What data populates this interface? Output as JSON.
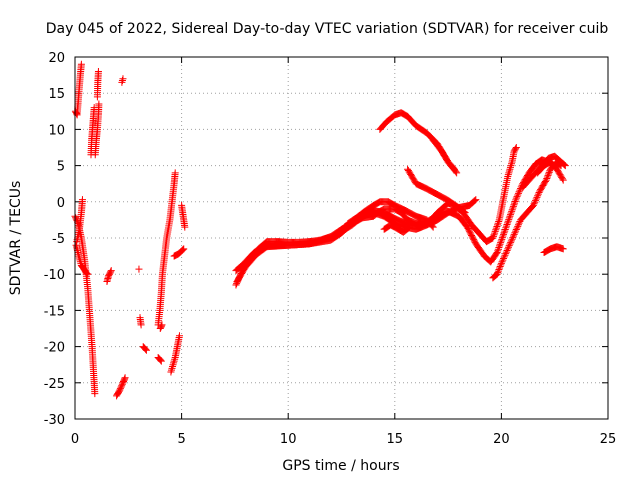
{
  "chart_data": {
    "type": "scatter",
    "title": "Day 045 of 2022, Sidereal Day-to-day VTEC variation (SDTVAR) for receiver cuib",
    "xlabel": "GPS time / hours",
    "ylabel": "SDTVAR / TECUs",
    "xlim": [
      0,
      25
    ],
    "ylim": [
      -30,
      20
    ],
    "xticks": [
      "0",
      "5",
      "10",
      "15",
      "20",
      "25"
    ],
    "yticks": [
      "-30",
      "-25",
      "-20",
      "-15",
      "-10",
      "-5",
      "0",
      "5",
      "10",
      "15",
      "20"
    ],
    "grid": true,
    "marker": "+",
    "color": "#ff0000",
    "series": [
      {
        "name": "SDTVAR",
        "segments": [
          [
            [
              0.0,
              -2.0
            ],
            [
              0.15,
              -3.0
            ],
            [
              0.3,
              -5.0
            ],
            [
              0.45,
              -8.0
            ],
            [
              0.6,
              -12.0
            ],
            [
              0.7,
              -16.0
            ],
            [
              0.8,
              -20.0
            ],
            [
              0.88,
              -24.0
            ],
            [
              0.93,
              -26.5
            ]
          ],
          [
            [
              0.08,
              -5.5
            ],
            [
              0.2,
              -4.0
            ],
            [
              0.3,
              -1.5
            ],
            [
              0.35,
              0.3
            ]
          ],
          [
            [
              0.05,
              -6.0
            ],
            [
              0.18,
              -7.5
            ],
            [
              0.3,
              -8.8
            ],
            [
              0.4,
              -9.2
            ],
            [
              0.52,
              -9.8
            ],
            [
              0.6,
              -10.0
            ]
          ],
          [
            [
              0.02,
              12.5
            ],
            [
              0.1,
              12.0
            ],
            [
              0.18,
              15.0
            ],
            [
              0.25,
              17.5
            ],
            [
              0.3,
              19.0
            ]
          ],
          [
            [
              0.75,
              6.5
            ],
            [
              0.78,
              8.5
            ],
            [
              0.82,
              10.0
            ],
            [
              0.86,
              11.5
            ],
            [
              0.9,
              13.0
            ]
          ],
          [
            [
              0.95,
              6.5
            ],
            [
              1.0,
              8.5
            ],
            [
              1.05,
              10.0
            ],
            [
              1.1,
              12.0
            ],
            [
              1.12,
              13.5
            ]
          ],
          [
            [
              1.05,
              14.5
            ],
            [
              1.07,
              16.5
            ],
            [
              1.1,
              18.0
            ]
          ],
          [
            [
              2.2,
              16.5
            ],
            [
              2.25,
              17.0
            ]
          ],
          [
            [
              1.5,
              -11.0
            ],
            [
              1.58,
              -10.2
            ],
            [
              1.7,
              -9.5
            ]
          ],
          [
            [
              3.0,
              -9.3
            ]
          ],
          [
            [
              3.05,
              -16.0
            ],
            [
              3.1,
              -17.0
            ]
          ],
          [
            [
              3.2,
              -20.0
            ],
            [
              3.35,
              -20.5
            ]
          ],
          [
            [
              1.95,
              -26.8
            ],
            [
              2.1,
              -26.0
            ],
            [
              2.25,
              -25.0
            ],
            [
              2.35,
              -24.3
            ]
          ],
          [
            [
              3.9,
              -17.0
            ],
            [
              3.98,
              -15.0
            ],
            [
              4.05,
              -12.5
            ],
            [
              4.1,
              -10.0
            ],
            [
              4.2,
              -7.5
            ],
            [
              4.3,
              -5.0
            ],
            [
              4.45,
              -2.5
            ],
            [
              4.55,
              0.0
            ],
            [
              4.65,
              2.5
            ],
            [
              4.7,
              4.0
            ]
          ],
          [
            [
              3.9,
              -21.5
            ],
            [
              4.05,
              -22.0
            ]
          ],
          [
            [
              4.0,
              -17.5
            ],
            [
              4.08,
              -17.0
            ]
          ],
          [
            [
              4.5,
              -23.5
            ],
            [
              4.6,
              -22.5
            ],
            [
              4.7,
              -21.5
            ],
            [
              4.8,
              -20.0
            ],
            [
              4.9,
              -18.5
            ]
          ],
          [
            [
              4.65,
              -7.5
            ],
            [
              4.85,
              -7.2
            ],
            [
              5.0,
              -6.8
            ],
            [
              5.1,
              -6.5
            ]
          ],
          [
            [
              5.0,
              -0.5
            ],
            [
              5.05,
              -1.5
            ],
            [
              5.1,
              -2.5
            ],
            [
              5.15,
              -3.5
            ]
          ],
          [
            [
              7.55,
              -11.5
            ],
            [
              7.7,
              -10.5
            ],
            [
              7.85,
              -9.5
            ],
            [
              8.0,
              -8.5
            ],
            [
              8.3,
              -7.5
            ],
            [
              8.6,
              -6.5
            ],
            [
              9.0,
              -5.5
            ],
            [
              9.5,
              -5.5
            ],
            [
              10.0,
              -5.6
            ],
            [
              10.5,
              -5.6
            ],
            [
              11.0,
              -5.5
            ],
            [
              11.5,
              -5.3
            ],
            [
              12.0,
              -4.8
            ],
            [
              12.5,
              -3.8
            ],
            [
              13.0,
              -2.8
            ],
            [
              13.5,
              -1.8
            ],
            [
              14.0,
              -1.2
            ],
            [
              14.5,
              -1.5
            ],
            [
              15.0,
              -2.3
            ],
            [
              15.5,
              -3.0
            ],
            [
              16.0,
              -3.3
            ],
            [
              16.5,
              -2.8
            ],
            [
              17.0,
              -1.8
            ],
            [
              17.5,
              -1.3
            ],
            [
              18.0,
              -2.0
            ],
            [
              18.4,
              -3.5
            ],
            [
              18.8,
              -5.8
            ],
            [
              19.2,
              -7.5
            ],
            [
              19.5,
              -8.3
            ],
            [
              19.8,
              -7.0
            ],
            [
              20.1,
              -4.5
            ],
            [
              20.4,
              -2.0
            ],
            [
              20.7,
              0.5
            ],
            [
              21.0,
              2.5
            ],
            [
              21.3,
              4.0
            ],
            [
              21.6,
              5.2
            ],
            [
              21.9,
              5.8
            ],
            [
              22.2,
              5.5
            ],
            [
              22.5,
              5.0
            ],
            [
              22.8,
              5.3
            ]
          ],
          [
            [
              7.55,
              -9.5
            ],
            [
              7.9,
              -8.6
            ],
            [
              8.4,
              -7.0
            ],
            [
              9.0,
              -6.0
            ],
            [
              10.0,
              -6.0
            ],
            [
              11.0,
              -5.8
            ],
            [
              12.0,
              -5.0
            ],
            [
              13.0,
              -3.2
            ],
            [
              13.5,
              -2.0
            ],
            [
              14.0,
              -1.5
            ],
            [
              14.5,
              -2.0
            ],
            [
              15.0,
              -3.0
            ],
            [
              15.5,
              -3.5
            ],
            [
              16.0,
              -3.8
            ],
            [
              16.5,
              -3.2
            ],
            [
              17.0,
              -1.5
            ],
            [
              17.5,
              -0.2
            ],
            [
              17.8,
              -0.5
            ],
            [
              18.2,
              -1.5
            ],
            [
              18.6,
              -3.2
            ],
            [
              19.0,
              -4.5
            ],
            [
              19.3,
              -5.5
            ],
            [
              19.6,
              -5.0
            ],
            [
              19.9,
              -2.5
            ],
            [
              20.1,
              0.5
            ],
            [
              20.3,
              3.5
            ],
            [
              20.5,
              5.5
            ],
            [
              20.6,
              7.0
            ],
            [
              20.7,
              7.5
            ]
          ],
          [
            [
              7.6,
              -11.0
            ],
            [
              8.0,
              -9.0
            ],
            [
              8.5,
              -7.3
            ],
            [
              9.0,
              -6.2
            ],
            [
              10.0,
              -6.0
            ],
            [
              11.0,
              -5.8
            ],
            [
              12.0,
              -5.3
            ],
            [
              12.5,
              -4.3
            ],
            [
              13.0,
              -3.0
            ],
            [
              13.5,
              -2.2
            ],
            [
              14.0,
              -2.0
            ],
            [
              14.2,
              -1.5
            ],
            [
              14.5,
              -1.0
            ],
            [
              15.0,
              -1.0
            ],
            [
              15.3,
              -1.5
            ],
            [
              15.6,
              -2.5
            ],
            [
              16.0,
              -3.0
            ],
            [
              16.5,
              -3.2
            ],
            [
              17.0,
              -2.5
            ],
            [
              17.5,
              -1.5
            ],
            [
              18.0,
              -0.8
            ],
            [
              18.3,
              -1.5
            ]
          ],
          [
            [
              12.8,
              -3.0
            ],
            [
              13.2,
              -2.2
            ],
            [
              13.6,
              -1.3
            ],
            [
              14.0,
              -0.5
            ],
            [
              14.3,
              0.0
            ],
            [
              14.7,
              0.0
            ],
            [
              15.0,
              -0.5
            ],
            [
              15.5,
              -1.2
            ],
            [
              16.0,
              -2.0
            ],
            [
              16.5,
              -2.5
            ],
            [
              16.8,
              -3.5
            ]
          ],
          [
            [
              14.5,
              -3.8
            ],
            [
              14.8,
              -3.2
            ],
            [
              15.0,
              -3.5
            ],
            [
              15.4,
              -4.2
            ],
            [
              15.7,
              -3.5
            ]
          ],
          [
            [
              14.3,
              10.0
            ],
            [
              14.6,
              11.0
            ],
            [
              15.0,
              12.0
            ],
            [
              15.3,
              12.3
            ],
            [
              15.6,
              11.8
            ],
            [
              16.0,
              10.5
            ],
            [
              16.5,
              9.5
            ],
            [
              17.0,
              8.0
            ],
            [
              17.5,
              5.5
            ],
            [
              17.9,
              4.0
            ]
          ],
          [
            [
              15.6,
              4.5
            ],
            [
              16.0,
              2.5
            ],
            [
              16.5,
              1.8
            ],
            [
              17.0,
              1.0
            ],
            [
              17.5,
              0.2
            ],
            [
              18.0,
              -0.8
            ],
            [
              18.5,
              -0.5
            ],
            [
              18.8,
              0.3
            ]
          ],
          [
            [
              16.8,
              8.5
            ],
            [
              17.2,
              7.0
            ],
            [
              17.5,
              5.5
            ],
            [
              17.8,
              4.5
            ]
          ],
          [
            [
              19.6,
              -10.5
            ],
            [
              19.8,
              -10.0
            ],
            [
              20.0,
              -8.5
            ],
            [
              20.3,
              -6.5
            ],
            [
              20.6,
              -4.5
            ],
            [
              20.9,
              -2.5
            ],
            [
              21.2,
              -1.5
            ],
            [
              21.5,
              -0.5
            ],
            [
              21.8,
              1.5
            ],
            [
              22.1,
              3.0
            ],
            [
              22.3,
              4.5
            ],
            [
              22.6,
              5.5
            ],
            [
              22.8,
              5.0
            ]
          ],
          [
            [
              21.0,
              2.0
            ],
            [
              21.3,
              3.0
            ],
            [
              21.6,
              4.0
            ],
            [
              21.9,
              5.0
            ],
            [
              22.2,
              6.0
            ],
            [
              22.5,
              6.3
            ],
            [
              22.8,
              5.5
            ],
            [
              23.0,
              5.0
            ]
          ],
          [
            [
              21.7,
              4.0
            ],
            [
              22.0,
              5.0
            ],
            [
              22.3,
              5.5
            ],
            [
              22.6,
              4.5
            ],
            [
              22.9,
              3.0
            ]
          ],
          [
            [
              22.0,
              -7.0
            ],
            [
              22.3,
              -6.5
            ],
            [
              22.6,
              -6.2
            ],
            [
              22.9,
              -6.5
            ]
          ]
        ]
      }
    ]
  }
}
